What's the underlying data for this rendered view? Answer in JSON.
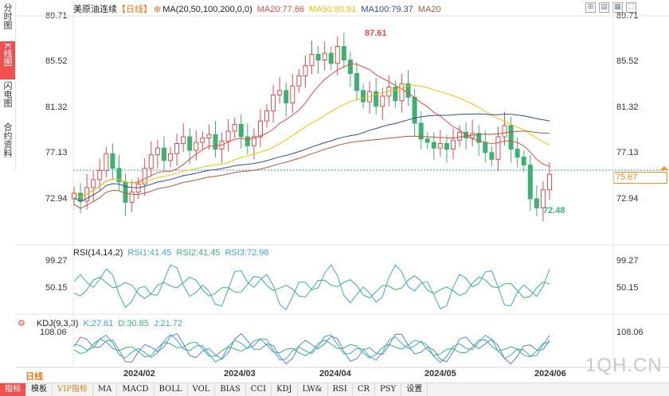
{
  "sidebar": [
    {
      "label": "分时图",
      "active": false
    },
    {
      "label": "K线图",
      "active": true
    },
    {
      "label": "闪电图",
      "active": false
    },
    {
      "label": "合约资料",
      "active": false
    }
  ],
  "main": {
    "title": "美原油连续",
    "period": "【日线】",
    "ma_label": "MA(20,50,100,200,0,0)",
    "ma20": "MA20:77.66",
    "ma50": "MA50:80.91",
    "ma100": "MA100:79.37",
    "ma200": "MA20",
    "yticks": [
      "89.71",
      "85.52",
      "81.32",
      "77.13",
      "72.94"
    ],
    "high_label": "87.61",
    "low_label": "72.48",
    "last_price": "75.67",
    "colors": {
      "up": "#e84a4a",
      "down": "#3bb272",
      "ma20": "#e84a4a",
      "ma50": "#f2c400",
      "ma100": "#2f4d8a",
      "ma200": "#b0573a",
      "last": "#ff8a1f"
    }
  },
  "rsi": {
    "label": "RSI(14,14,2)",
    "rsi1": "RSI1:41.45",
    "rsi2": "RSI2:41.45",
    "rsi3": "RSI3:72.98",
    "yticks": [
      "99.27",
      "50.15"
    ]
  },
  "kdj": {
    "label": "KDJ(9,3,3)",
    "k": "K:27.81",
    "d": "D:30.85",
    "j": "J:21.72",
    "yticks": [
      "108.06"
    ]
  },
  "xaxis": [
    "2024/02",
    "2024/03",
    "2024/04",
    "2024/05",
    "2024/06"
  ],
  "period_button": "日线",
  "bottom_tabs": [
    {
      "label": "指标",
      "active": true
    },
    {
      "label": "模板",
      "active": false
    },
    {
      "label": "VIP指标",
      "active": false,
      "vip": true
    },
    {
      "label": "MA",
      "active": false
    },
    {
      "label": "MACD",
      "active": false
    },
    {
      "label": "BOLL",
      "active": false
    },
    {
      "label": "VOL",
      "active": false
    },
    {
      "label": "BIAS",
      "active": false
    },
    {
      "label": "CCI",
      "active": false
    },
    {
      "label": "KDJ",
      "active": false
    },
    {
      "label": "LW&",
      "active": false
    },
    {
      "label": "RSI",
      "active": false
    },
    {
      "label": "CR",
      "active": false
    },
    {
      "label": "PSY",
      "active": false
    },
    {
      "label": "设置",
      "active": false
    }
  ],
  "watermark": "1QH.CN"
}
